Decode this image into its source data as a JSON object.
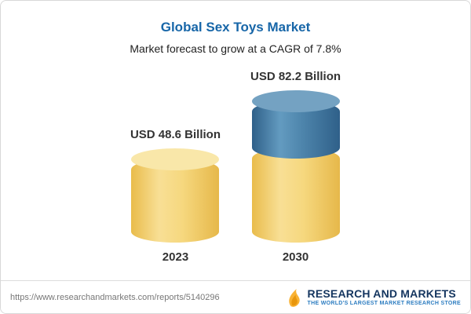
{
  "header": {
    "title": "Global Sex Toys Market",
    "subtitle": "Market forecast to grow at a CAGR of 7.8%"
  },
  "chart_data": {
    "type": "bar",
    "variant": "cylinder",
    "categories": [
      "2023",
      "2030"
    ],
    "values": [
      48.6,
      82.2
    ],
    "value_labels": [
      "USD 48.6 Billion",
      "USD 82.2 Billion"
    ],
    "unit": "USD Billion",
    "title": "Global Sex Toys Market",
    "subtitle": "Market forecast to grow at a CAGR of 7.8%",
    "cagr": "7.8%",
    "xlabel": "",
    "ylabel": "",
    "grid": false,
    "legend": false,
    "annotation": "2030 bar shows growth segment above 2023 base",
    "colors": {
      "base": "#F3D172",
      "base_cap": "#F9E7A9",
      "growth": "#3F78A4",
      "growth_cap": "#74A2C2"
    }
  },
  "footer": {
    "url": "https://www.researchandmarkets.com/reports/5140296",
    "logo_text": "RESEARCH AND MARKETS",
    "logo_tagline": "THE WORLD'S LARGEST MARKET RESEARCH STORE"
  }
}
